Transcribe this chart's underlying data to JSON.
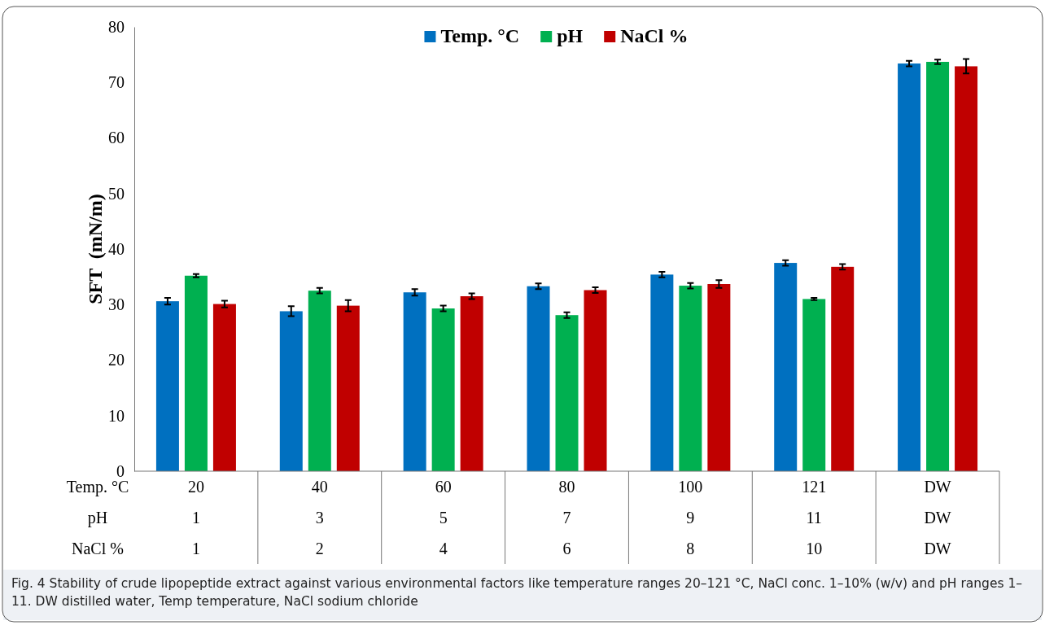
{
  "chart_data": {
    "type": "bar",
    "ylabel": "SFT  (mN/m)",
    "categories": [
      "20\n1\n1",
      "40\n3\n2",
      "60\n5\n4",
      "80\n7\n6",
      "100\n9\n8",
      "121\n11\n10",
      "DW\nDW\nDW"
    ],
    "series": [
      {
        "name": "Temp. °C",
        "color": "#0070c0",
        "values": [
          30.6,
          28.8,
          32.2,
          33.3,
          35.4,
          37.5,
          73.4
        ],
        "errors": [
          0.6,
          0.9,
          0.6,
          0.5,
          0.5,
          0.5,
          0.5
        ]
      },
      {
        "name": "pH",
        "color": "#00b050",
        "values": [
          35.2,
          32.5,
          29.3,
          28.1,
          33.4,
          31.0,
          73.7
        ],
        "errors": [
          0.3,
          0.5,
          0.5,
          0.5,
          0.5,
          0.2,
          0.4
        ]
      },
      {
        "name": "NaCl %",
        "color": "#c00000",
        "values": [
          30.1,
          29.8,
          31.5,
          32.6,
          33.7,
          36.8,
          72.9
        ],
        "errors": [
          0.6,
          1.0,
          0.5,
          0.5,
          0.7,
          0.5,
          1.3
        ]
      }
    ],
    "ylim": [
      0,
      80
    ],
    "yticks": [
      0,
      10,
      20,
      30,
      40,
      50,
      60,
      70,
      80
    ],
    "grid": false,
    "legend": "top",
    "annotations": [
      "Fig. 4  Stability of crude lipopeptide extract against various environmental factors like temperature ranges 20–121 °C, NaCl conc. 1–10% (w/v) and pH ranges 1–11. DW distilled water, Temp temperature, NaCl sodium chloride"
    ]
  }
}
